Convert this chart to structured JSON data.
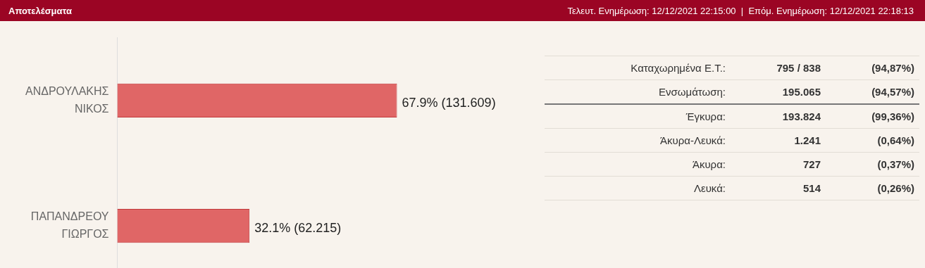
{
  "chart_data": [
    {
      "type": "bar",
      "orientation": "horizontal",
      "title": "Αποτελέσματα",
      "categories": [
        "ΑΝΔΡΟΥΛΑΚΗΣ ΝΙΚΟΣ",
        "ΠΑΠΑΝΔΡΕΟΥ ΓΙΩΡΓΟΣ"
      ],
      "values": [
        67.9,
        32.1
      ],
      "color": "#e06666",
      "value_labels": [
        "67.9% (131.609)",
        "32.1% (62.215)"
      ]
    },
    {
      "type": "other",
      "subtitle": "Τελευτ. Ενημέρωση: 12/12/2021 22:15:00  |  Επόμ. Ενημέρωση: 12/12/2021 22:18:13",
      "annotations": [
        "Καταχωρημένα Ε.Τ.:",
        "795 / 838",
        "(94,87%)",
        "Ενσωμάτωση:",
        "195.065",
        "(94,57%)",
        "Έγκυρα:",
        "193.824",
        "(99,36%)",
        "Άκυρα-Λευκά:",
        "1.241",
        "(0,64%)",
        "Άκυρα:",
        "727",
        "(0,37%)",
        "Λευκά:",
        "514",
        "(0,26%)"
      ]
    }
  ]
}
